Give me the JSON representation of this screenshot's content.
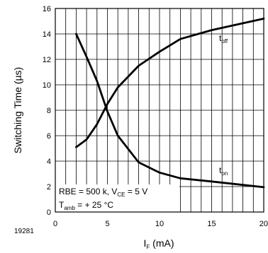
{
  "chart_data": {
    "type": "line",
    "figure_number": "19281",
    "xlabel": "I",
    "xlabel_sub": "F",
    "xlabel_unit": " (mA)",
    "ylabel": "Switching Time (µs)",
    "xlim": [
      0,
      20
    ],
    "ylim": [
      0,
      16
    ],
    "x_ticks": [
      0,
      5,
      10,
      15,
      20
    ],
    "x_tick_labels": [
      "0",
      "5",
      "10",
      "15",
      "20"
    ],
    "y_ticks": [
      0,
      2,
      4,
      6,
      8,
      10,
      12,
      14,
      16
    ],
    "grid": {
      "x_minor_step": 1,
      "y_step": 2
    },
    "conditions": {
      "line1_prefix": "RBE = 500 k, V",
      "line1_sub": "CE",
      "line1_suffix": " = 5 V",
      "line2_prefix": "T",
      "line2_sub": "amb",
      "line2_suffix": " = + 25 °C"
    },
    "series": [
      {
        "name": "t",
        "name_sub": "off",
        "x": [
          2,
          3,
          4,
          5,
          6,
          8,
          10,
          12,
          15,
          20
        ],
        "y": [
          5.1,
          5.7,
          6.9,
          8.5,
          9.8,
          11.5,
          12.6,
          13.6,
          14.3,
          15.2
        ]
      },
      {
        "name": "t",
        "name_sub": "on",
        "x": [
          2,
          3,
          4,
          5,
          6,
          8,
          10,
          12,
          15,
          20
        ],
        "y": [
          14.0,
          12.2,
          10.3,
          7.9,
          6.0,
          3.9,
          3.1,
          2.65,
          2.4,
          1.95
        ]
      }
    ]
  }
}
